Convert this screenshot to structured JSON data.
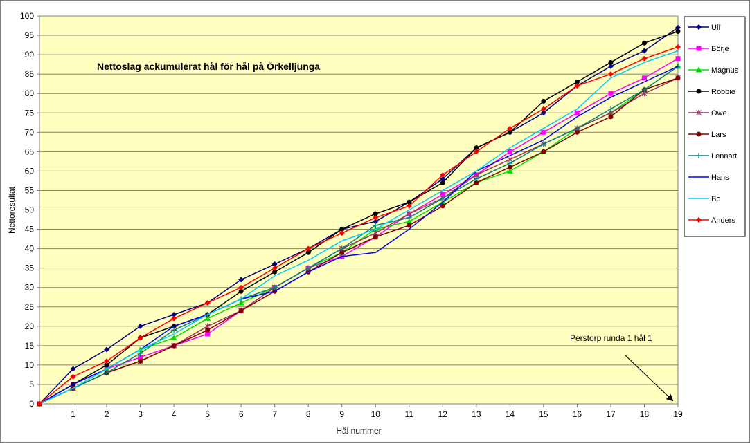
{
  "chart_data": {
    "type": "line",
    "title": "Nettoslag ackumulerat hål för hål på Örkelljunga",
    "xlabel": "Hål nummer",
    "ylabel": "Nettoresultat",
    "x": [
      0,
      1,
      2,
      3,
      4,
      5,
      6,
      7,
      8,
      9,
      10,
      11,
      12,
      13,
      14,
      15,
      16,
      17,
      18,
      19
    ],
    "x_tick_labels": [
      "1",
      "2",
      "3",
      "4",
      "5",
      "6",
      "7",
      "8",
      "9",
      "10",
      "11",
      "12",
      "13",
      "14",
      "15",
      "16",
      "17",
      "18",
      "19"
    ],
    "ylim": [
      0,
      100
    ],
    "y_ticks": [
      0,
      5,
      10,
      15,
      20,
      25,
      30,
      35,
      40,
      45,
      50,
      55,
      60,
      65,
      70,
      75,
      80,
      85,
      90,
      95,
      100
    ],
    "grid": true,
    "legend_position": "right",
    "plot_background": "#ffffc0",
    "series": [
      {
        "name": "Ulf",
        "color": "#000080",
        "marker": "diamond",
        "values": [
          0,
          9,
          14,
          20,
          23,
          26,
          32,
          36,
          40,
          45,
          47,
          52,
          58,
          66,
          70,
          75,
          82,
          87,
          91,
          97
        ]
      },
      {
        "name": "Börje",
        "color": "#ff00ff",
        "marker": "square",
        "values": [
          0,
          5,
          9,
          12,
          15,
          18,
          24,
          30,
          35,
          38,
          43,
          49,
          54,
          59,
          65,
          70,
          75,
          80,
          84,
          89
        ]
      },
      {
        "name": "Magnus",
        "color": "#00e000",
        "marker": "triangle",
        "values": [
          0,
          4,
          9,
          14,
          17,
          22,
          26,
          30,
          35,
          39,
          45,
          47,
          52,
          57,
          60,
          65,
          71,
          75,
          81,
          87
        ]
      },
      {
        "name": "Robbie",
        "color": "#000000",
        "marker": "circle",
        "values": [
          0,
          5,
          10,
          17,
          20,
          23,
          29,
          34,
          39,
          45,
          49,
          52,
          57,
          66,
          70,
          78,
          83,
          88,
          93,
          96
        ]
      },
      {
        "name": "Owe",
        "color": "#993366",
        "marker": "star",
        "values": [
          0,
          4,
          8,
          11,
          15,
          20,
          24,
          30,
          35,
          40,
          44,
          49,
          53,
          59,
          63,
          67,
          71,
          75,
          80,
          84
        ]
      },
      {
        "name": "Lars",
        "color": "#800000",
        "marker": "circle",
        "values": [
          0,
          4,
          8,
          11,
          15,
          19,
          24,
          29,
          34,
          39,
          43,
          46,
          51,
          57,
          61,
          65,
          70,
          74,
          81,
          84
        ]
      },
      {
        "name": "Lennart",
        "color": "#008080",
        "marker": "plus",
        "values": [
          0,
          4,
          8,
          13,
          19,
          23,
          27,
          30,
          35,
          40,
          46,
          48,
          53,
          58,
          62,
          67,
          71,
          76,
          81,
          87
        ]
      },
      {
        "name": "Hans",
        "color": "#0000ff",
        "marker": "none",
        "values": [
          0,
          5,
          9,
          14,
          20,
          23,
          27,
          29,
          34,
          38,
          39,
          45,
          52,
          60,
          64,
          68,
          74,
          79,
          83,
          87
        ]
      },
      {
        "name": "Bo",
        "color": "#00ccff",
        "marker": "none",
        "values": [
          0,
          4,
          9,
          14,
          18,
          23,
          27,
          33,
          37,
          42,
          45,
          50,
          55,
          60,
          66,
          71,
          76,
          84,
          88,
          91
        ]
      },
      {
        "name": "Anders",
        "color": "#ff0000",
        "marker": "diamond",
        "values": [
          0,
          7,
          11,
          17,
          22,
          26,
          30,
          35,
          40,
          44,
          48,
          51,
          59,
          65,
          71,
          76,
          82,
          85,
          89,
          92
        ]
      }
    ],
    "annotations": [
      {
        "text": "Perstorp runda 1 hål 1",
        "points_to_x": 19,
        "points_to_y": 0
      }
    ]
  }
}
